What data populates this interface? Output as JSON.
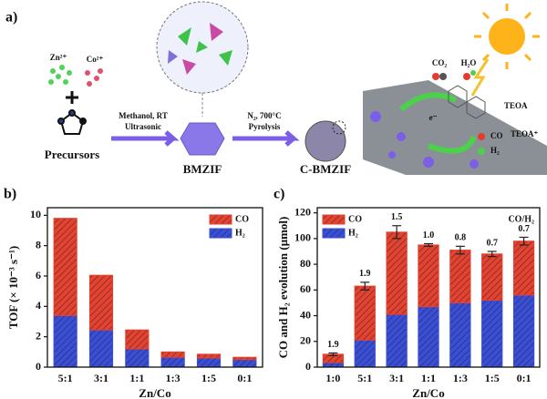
{
  "diagram": {
    "label": "a)",
    "zn": "Zn²⁺",
    "co": "Co²⁺",
    "precursors": "Precursors",
    "step1_a": "Methanol, RT",
    "step1_b": "Ultrasonic",
    "bmzif": "BMZIF",
    "step2_a": "N₂, 700°C",
    "step2_b": "Pyrolysis",
    "cbmzif": "C-BMZIF",
    "co2": "CO₂",
    "h2o": "H₂O",
    "electron": "e⁻",
    "teoa": "TEOA",
    "teoa_plus": "TEOA⁺",
    "co_out": "CO",
    "h2_out": "H₂"
  },
  "chart_data": [
    {
      "type": "stacked_bar",
      "label": "b)",
      "x_label": "Zn/Co",
      "y_label": "TOF (× 10⁻³ s⁻¹)",
      "categories": [
        "5:1",
        "3:1",
        "1:1",
        "1:3",
        "1:5",
        "0:1"
      ],
      "series": [
        {
          "name": "H₂",
          "color": "#3a4fd6",
          "values": [
            3.4,
            2.45,
            1.2,
            0.65,
            0.6,
            0.5
          ]
        },
        {
          "name": "CO",
          "color": "#e5432f",
          "values": [
            6.4,
            3.6,
            1.25,
            0.35,
            0.25,
            0.15
          ]
        }
      ],
      "ylim": [
        0,
        10.5
      ],
      "yticks": [
        0,
        2,
        4,
        6,
        8,
        10
      ],
      "legend": "upper right"
    },
    {
      "type": "stacked_bar",
      "label": "c)",
      "x_label": "Zn/Co",
      "y_label": "CO and H₂ evolution (μmol)",
      "categories": [
        "1:0",
        "5:1",
        "3:1",
        "1:1",
        "1:3",
        "1:5",
        "0:1"
      ],
      "series": [
        {
          "name": "H₂",
          "color": "#3a4fd6",
          "values": [
            3.5,
            21,
            41,
            47,
            50,
            52,
            56
          ]
        },
        {
          "name": "CO",
          "color": "#e5432f",
          "values": [
            6.5,
            42,
            64,
            48,
            41,
            36,
            42
          ],
          "errors": [
            1,
            3,
            5,
            1,
            3,
            2,
            3
          ]
        }
      ],
      "annotations": [
        "1.9",
        "1.9",
        "1.5",
        "1.0",
        "0.8",
        "0.7",
        "0.7"
      ],
      "annotation_title": "CO/H₂",
      "ylim": [
        0,
        124
      ],
      "yticks": [
        0,
        20,
        40,
        60,
        80,
        100,
        120
      ],
      "legend": "upper left"
    }
  ]
}
